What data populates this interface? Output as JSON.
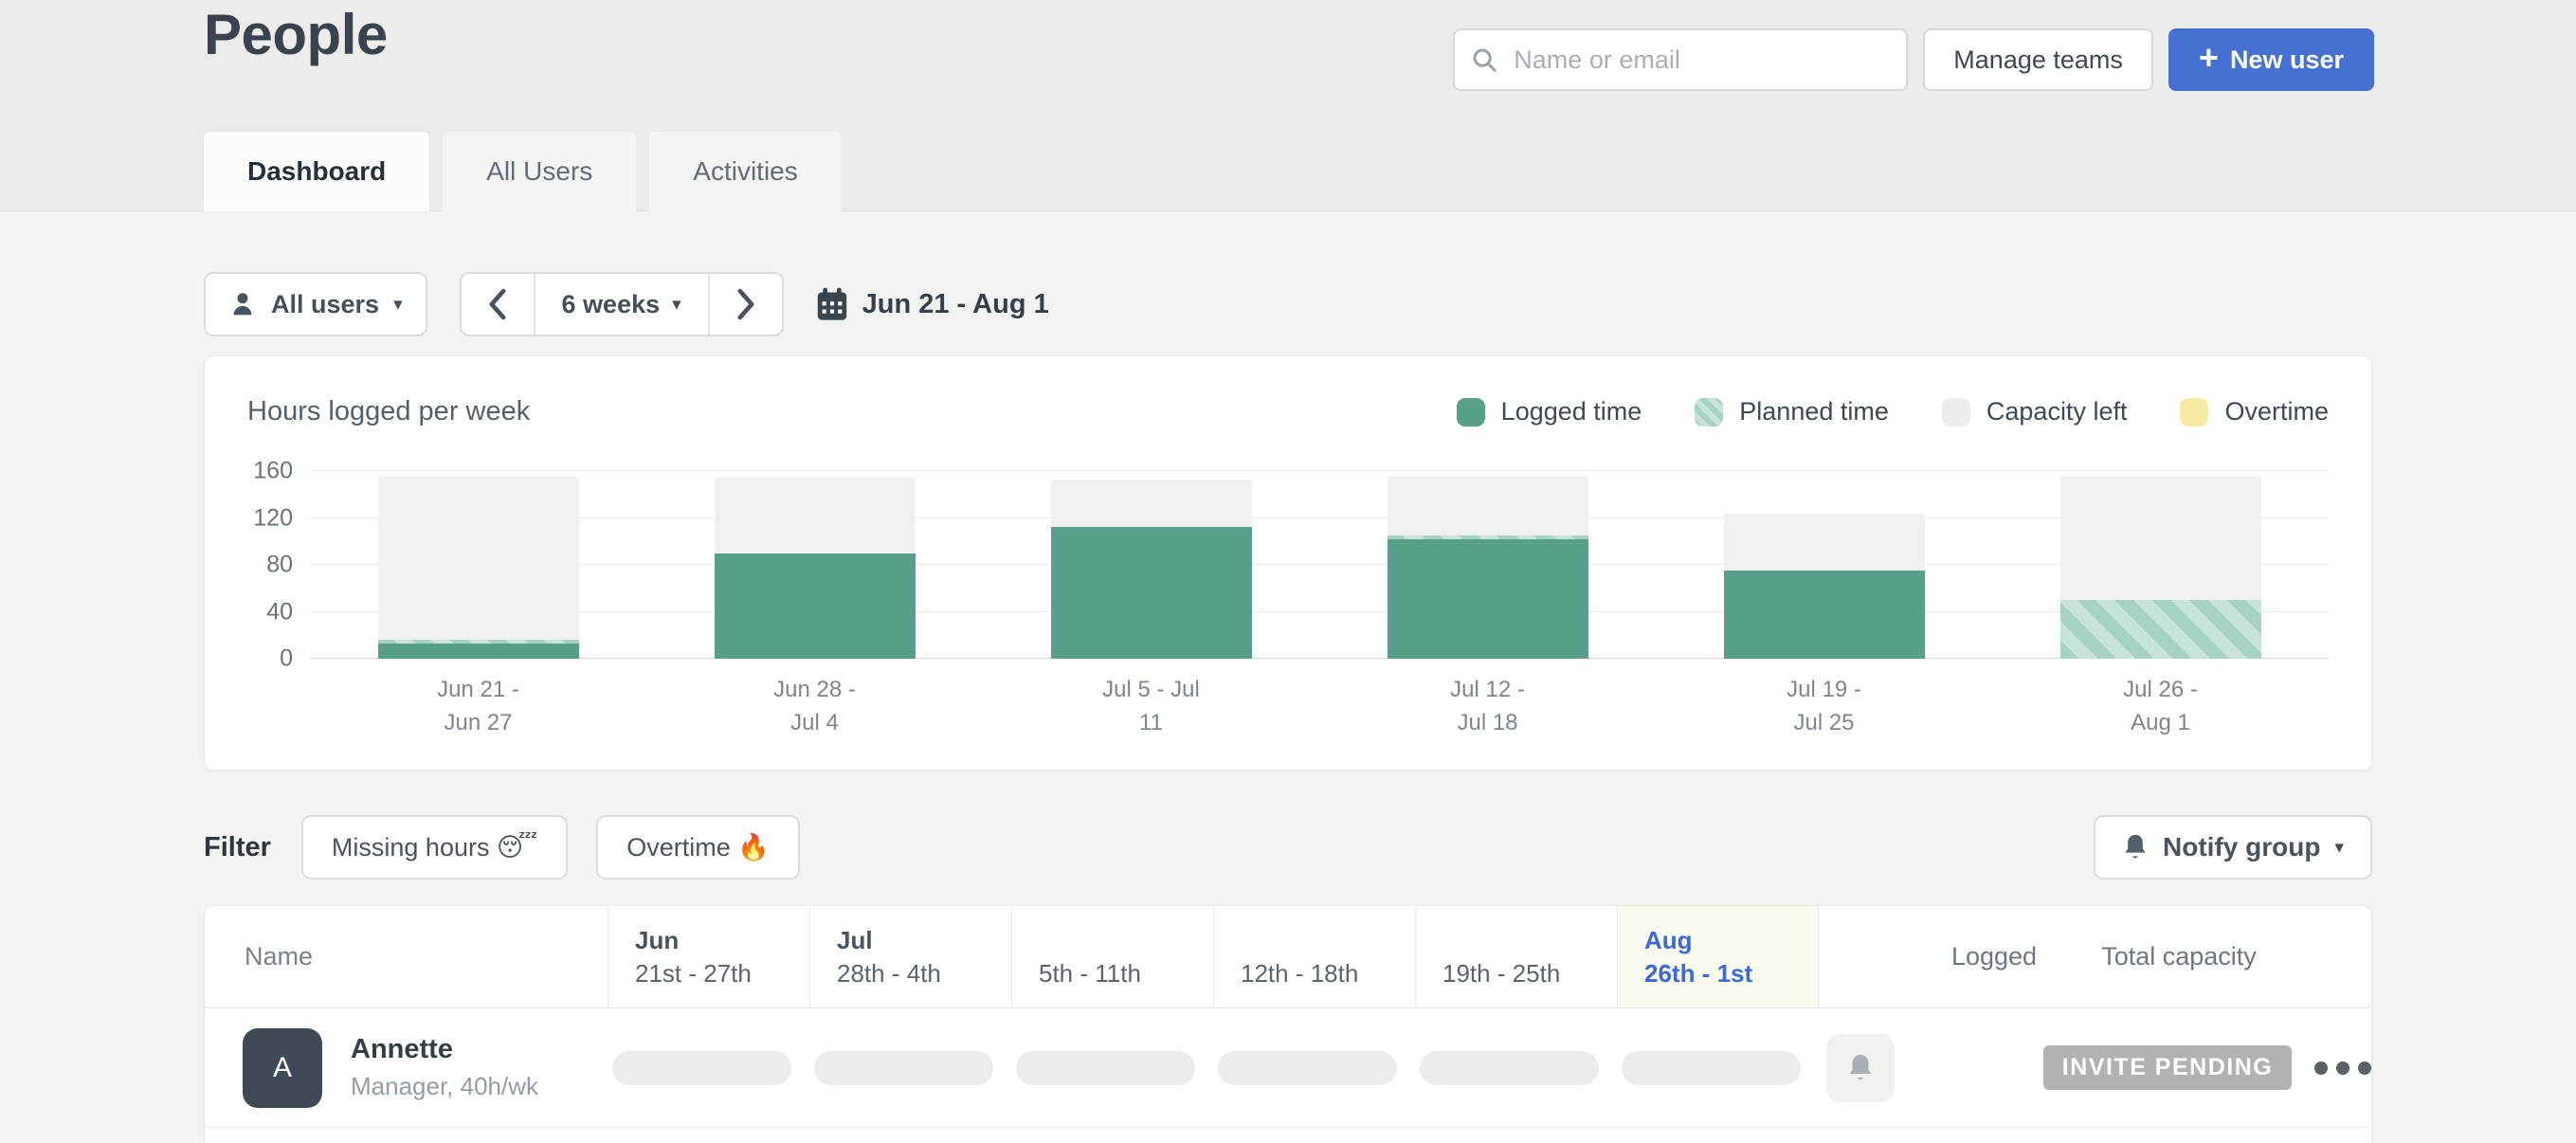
{
  "page": {
    "title": "People"
  },
  "header": {
    "search_placeholder": "Name or email",
    "manage_teams_label": "Manage teams",
    "new_user_label": "New user",
    "new_user_plus": "+",
    "tabs": [
      {
        "label": "Dashboard",
        "active": true
      },
      {
        "label": "All Users",
        "active": false
      },
      {
        "label": "Activities",
        "active": false
      }
    ]
  },
  "toolbar": {
    "users_filter_label": "All users",
    "range_label": "6 weeks",
    "date_range": "Jun 21 - Aug 1",
    "caret": "▾"
  },
  "chart_card": {
    "title": "Hours logged per week",
    "legend": [
      {
        "label": "Logged time",
        "swatch": "logged"
      },
      {
        "label": "Planned time",
        "swatch": "planned"
      },
      {
        "label": "Capacity left",
        "swatch": "capacity"
      },
      {
        "label": "Overtime",
        "swatch": "overtime"
      }
    ]
  },
  "chart_data": {
    "type": "bar",
    "stacked": true,
    "title": "Hours logged per week",
    "xlabel": "",
    "ylabel": "",
    "ylim": [
      0,
      160
    ],
    "yticks": [
      0,
      40,
      80,
      120,
      160
    ],
    "grid": true,
    "legend_position": "top-right",
    "categories": [
      "Jun 21 -\nJun 27",
      "Jun 28 -\nJul 4",
      "Jul 5 - Jul\n11",
      "Jul 12 -\nJul 18",
      "Jul 19 -\nJul 25",
      "Jul 26 -\nAug 1"
    ],
    "series": [
      {
        "name": "Logged time",
        "values": [
          13,
          90,
          112,
          102,
          75,
          0
        ]
      },
      {
        "name": "Planned time",
        "values": [
          3,
          0,
          0,
          3,
          0,
          50
        ]
      },
      {
        "name": "Capacity left",
        "values": [
          139,
          64,
          41,
          50,
          49,
          105
        ]
      }
    ],
    "bar_totals": [
      155,
      154,
      153,
      155,
      124,
      155
    ],
    "colors": {
      "logged": "#59a08c",
      "planned": "#b9dccc",
      "capacity_left": "#f0f0ee",
      "overtime": "#f8e9a4"
    }
  },
  "filter_row": {
    "label": "Filter",
    "buttons": [
      "Missing hours 😴",
      "Overtime 🔥"
    ],
    "notify_label": "Notify group"
  },
  "table": {
    "name_header": "Name",
    "week_columns": [
      {
        "month": "Jun",
        "range": "21st - 27th",
        "highlighted": false
      },
      {
        "month": "Jul",
        "range": "28th - 4th",
        "highlighted": false
      },
      {
        "month": "",
        "range": "5th - 11th",
        "highlighted": false
      },
      {
        "month": "",
        "range": "12th - 18th",
        "highlighted": false
      },
      {
        "month": "",
        "range": "19th - 25th",
        "highlighted": false
      },
      {
        "month": "Aug",
        "range": "26th - 1st",
        "highlighted": true
      }
    ],
    "logged_header": "Logged",
    "capacity_header": "Total capacity",
    "rows": [
      {
        "initial": "A",
        "name": "Annette",
        "role": "Manager, 40h/wk",
        "status": "INVITE PENDING"
      }
    ]
  },
  "colors": {
    "accent_blue": "#4671d2",
    "highlight_column_bg": "#fafaef",
    "highlight_text_blue": "#3b68de",
    "badge_gray": "#b2b2b2",
    "avatar_slate": "#3f4a56"
  }
}
